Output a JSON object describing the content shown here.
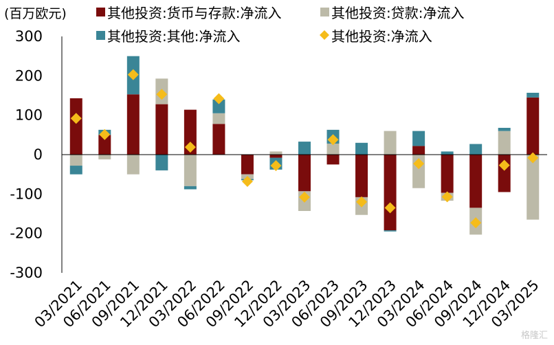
{
  "chart_data": {
    "type": "bar",
    "stacked": true,
    "unit_label": "(百万欧元)",
    "categories": [
      "03/2021",
      "06/2021",
      "09/2021",
      "12/2021",
      "03/2022",
      "06/2022",
      "09/2022",
      "12/2022",
      "03/2023",
      "06/2023",
      "09/2023",
      "12/2023",
      "03/2024",
      "06/2024",
      "09/2024",
      "12/2024",
      "03/2025"
    ],
    "ylim": [
      -300,
      300
    ],
    "yticks": [
      300,
      200,
      100,
      0,
      -100,
      -200,
      -300
    ],
    "grid": false,
    "legend_position": "top",
    "series": [
      {
        "name": "其他投资:货币与存款:净流入",
        "kind": "bar",
        "color": "#7a0c0c",
        "values": [
          143,
          50,
          153,
          128,
          114,
          78,
          -50,
          -8,
          -93,
          -25,
          -108,
          -192,
          22,
          -97,
          -135,
          -95,
          145
        ]
      },
      {
        "name": "其他投资:贷款:净流入",
        "kind": "bar",
        "color": "#bcbaa8",
        "values": [
          -28,
          -12,
          -50,
          65,
          -80,
          27,
          -12,
          8,
          -50,
          28,
          -45,
          60,
          -85,
          -20,
          -68,
          60,
          -165
        ]
      },
      {
        "name": "其他投资:其他:净流入",
        "kind": "bar",
        "color": "#3a8596",
        "values": [
          -22,
          13,
          97,
          -40,
          -8,
          35,
          -3,
          -30,
          33,
          35,
          30,
          -3,
          38,
          8,
          27,
          8,
          12
        ]
      },
      {
        "name": "其他投资:净流入",
        "kind": "point",
        "color": "#f5bc1a",
        "values": [
          92,
          51,
          203,
          153,
          19,
          142,
          -68,
          -28,
          -108,
          38,
          -120,
          -135,
          -23,
          -107,
          -173,
          -27,
          -8
        ]
      }
    ]
  },
  "watermark": "格隆汇"
}
